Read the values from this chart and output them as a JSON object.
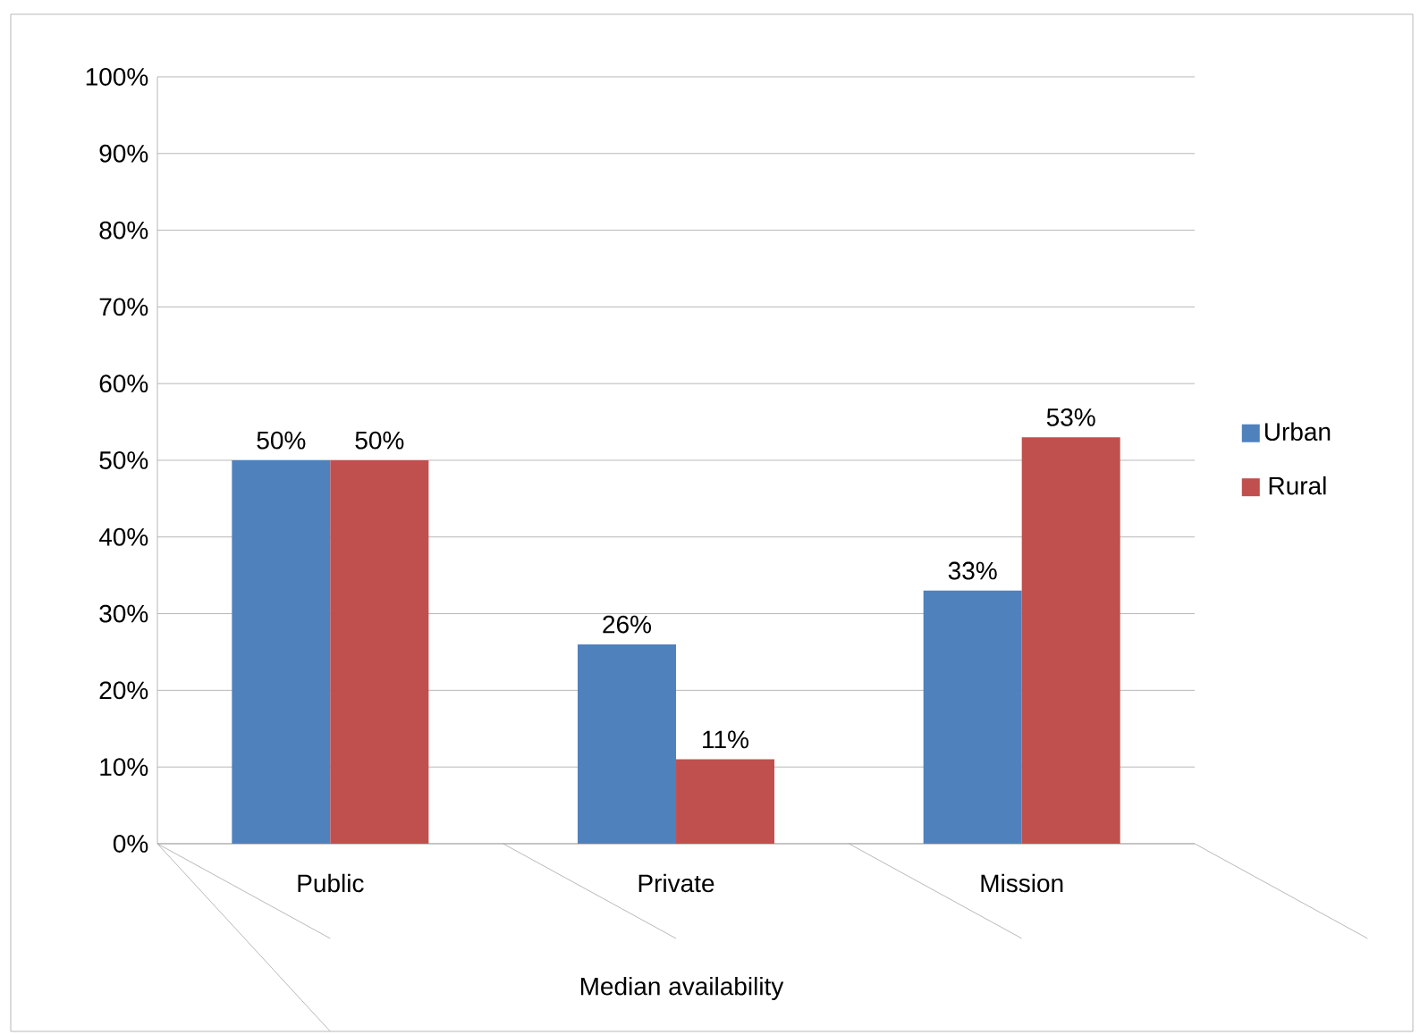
{
  "chart_data": {
    "type": "bar",
    "xlabel": "Median availability",
    "categories": [
      "Public",
      "Private",
      "Mission"
    ],
    "series": [
      {
        "name": "Urban",
        "color": "#4f81bd",
        "values": [
          50,
          26,
          33
        ],
        "value_labels": [
          "50%",
          "26%",
          "33%"
        ]
      },
      {
        "name": "Rural",
        "color": "#c0504d",
        "values": [
          50,
          11,
          53
        ],
        "value_labels": [
          "50%",
          "11%",
          "53%"
        ]
      }
    ],
    "ylim": [
      0,
      100
    ],
    "yticks": [
      {
        "value": 0,
        "label": "0%"
      },
      {
        "value": 10,
        "label": "10%"
      },
      {
        "value": 20,
        "label": "20%"
      },
      {
        "value": 30,
        "label": "30%"
      },
      {
        "value": 40,
        "label": "40%"
      },
      {
        "value": 50,
        "label": "50%"
      },
      {
        "value": 60,
        "label": "60%"
      },
      {
        "value": 70,
        "label": "70%"
      },
      {
        "value": 80,
        "label": "80%"
      },
      {
        "value": 90,
        "label": "90%"
      },
      {
        "value": 100,
        "label": "100%"
      }
    ],
    "grid": "y",
    "legend": "right"
  }
}
